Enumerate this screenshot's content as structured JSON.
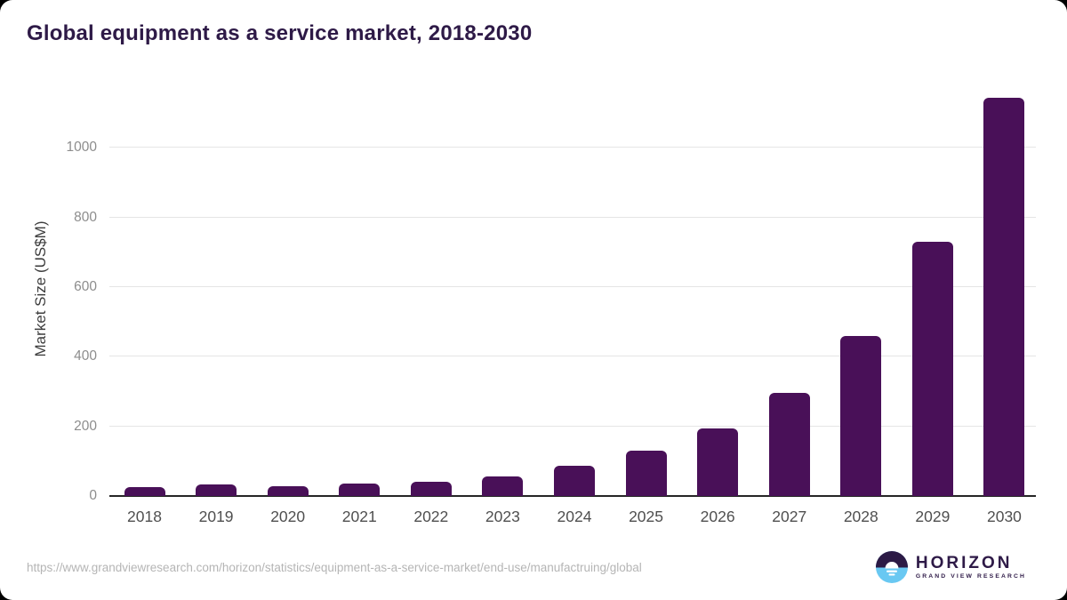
{
  "title": "Global equipment as a service market, 2018-2030",
  "chart_data": {
    "type": "bar",
    "categories": [
      "2018",
      "2019",
      "2020",
      "2021",
      "2022",
      "2023",
      "2024",
      "2025",
      "2026",
      "2027",
      "2028",
      "2029",
      "2030"
    ],
    "values": [
      26,
      32,
      27,
      35,
      42,
      57,
      88,
      129,
      193,
      295,
      459,
      730,
      1143
    ],
    "title": "Global equipment as a service market, 2018-2030",
    "xlabel": "",
    "ylabel": "Market Size (US$M)",
    "ylim": [
      0,
      1170
    ],
    "y_ticks": [
      0,
      200,
      400,
      600,
      800,
      1000
    ],
    "grid": true,
    "legend": false,
    "bar_color": "#491058"
  },
  "footer": {
    "source_url": "https://www.grandviewresearch.com/horizon/statistics/equipment-as-a-service-market/end-use/manufactruing/global",
    "logo": {
      "name": "HORIZON",
      "tagline": "GRAND VIEW RESEARCH",
      "icon": "sun-horizon-icon",
      "icon_top_color": "#2c1a45",
      "icon_bottom_color": "#69c8f2"
    }
  },
  "colors": {
    "title_text": "#2e1a47",
    "bar": "#491058",
    "gridline": "#e5e5e5",
    "axis_line": "#262626",
    "tick_text": "#8d8d8d"
  }
}
